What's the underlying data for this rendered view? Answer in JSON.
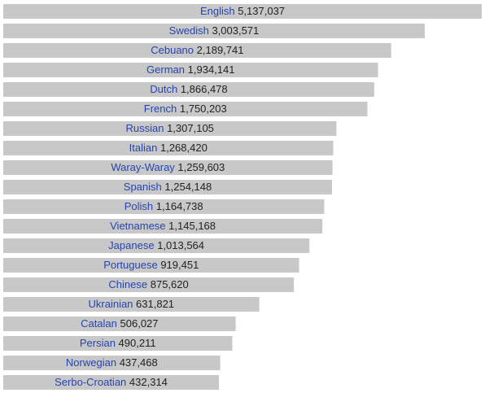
{
  "chart_data": {
    "type": "bar",
    "orientation": "horizontal",
    "log_scale": true,
    "categories": [
      "English",
      "Swedish",
      "Cebuano",
      "German",
      "Dutch",
      "French",
      "Russian",
      "Italian",
      "Waray-Waray",
      "Spanish",
      "Polish",
      "Vietnamese",
      "Japanese",
      "Portuguese",
      "Chinese",
      "Ukrainian",
      "Catalan",
      "Persian",
      "Norwegian",
      "Serbo-Croatian"
    ],
    "values": [
      5137037,
      3003571,
      2189741,
      1934141,
      1866478,
      1750203,
      1307105,
      1268420,
      1259603,
      1254148,
      1164738,
      1145168,
      1013564,
      919451,
      875620,
      631821,
      506027,
      490211,
      437468,
      432314
    ],
    "value_labels": [
      "5,137,037",
      "3,003,571",
      "2,189,741",
      "1,934,141",
      "1,866,478",
      "1,750,203",
      "1,307,105",
      "1,268,420",
      "1,259,603",
      "1,254,148",
      "1,164,738",
      "1,145,168",
      "1,013,564",
      "919,451",
      "875,620",
      "631,821",
      "506,027",
      "490,211",
      "437,468",
      "432,314"
    ],
    "color": "#c8c8c8",
    "xlim": [
      56700,
      5137037
    ]
  }
}
